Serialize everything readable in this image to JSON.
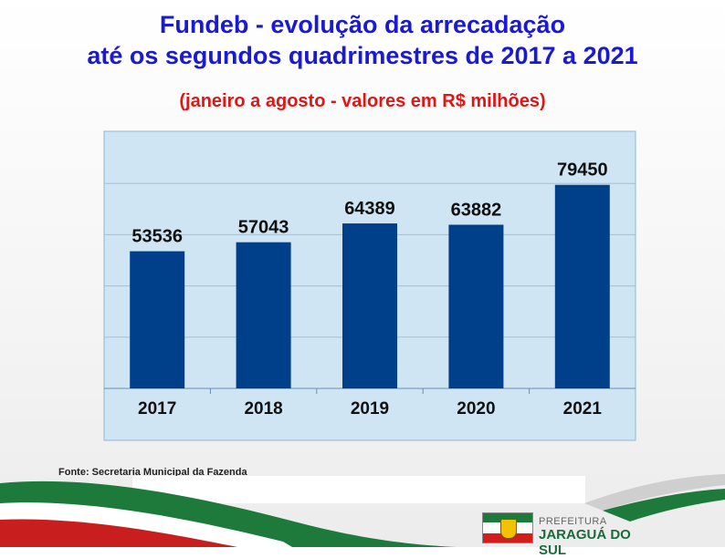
{
  "title_line1": "Fundeb - evolução da arrecadação",
  "title_line2": "até os segundos quadrimestres de 2017 a 2021",
  "subtitle": "(janeiro a agosto - valores em R$ milhões)",
  "source": "Fonte: Secretaria Municipal da Fazenda",
  "logo": {
    "line1": "PREFEITURA",
    "line2": "JARAGUÁ DO SUL"
  },
  "colors": {
    "title": "#1a1ad6",
    "subtitle": "#e01616",
    "bar": "#003f8a",
    "plot_bg": "#cfe5f3",
    "wave_green": "#1d7a3a",
    "wave_red": "#c81e1e"
  },
  "chart_data": {
    "type": "bar",
    "categories": [
      "2017",
      "2018",
      "2019",
      "2020",
      "2021"
    ],
    "values": [
      53536,
      57043,
      64389,
      63882,
      79450
    ],
    "data_labels": [
      "53536",
      "57043",
      "64389",
      "63882",
      "79450"
    ],
    "ylim": [
      0,
      100000
    ],
    "grid": true,
    "legend": "none"
  }
}
